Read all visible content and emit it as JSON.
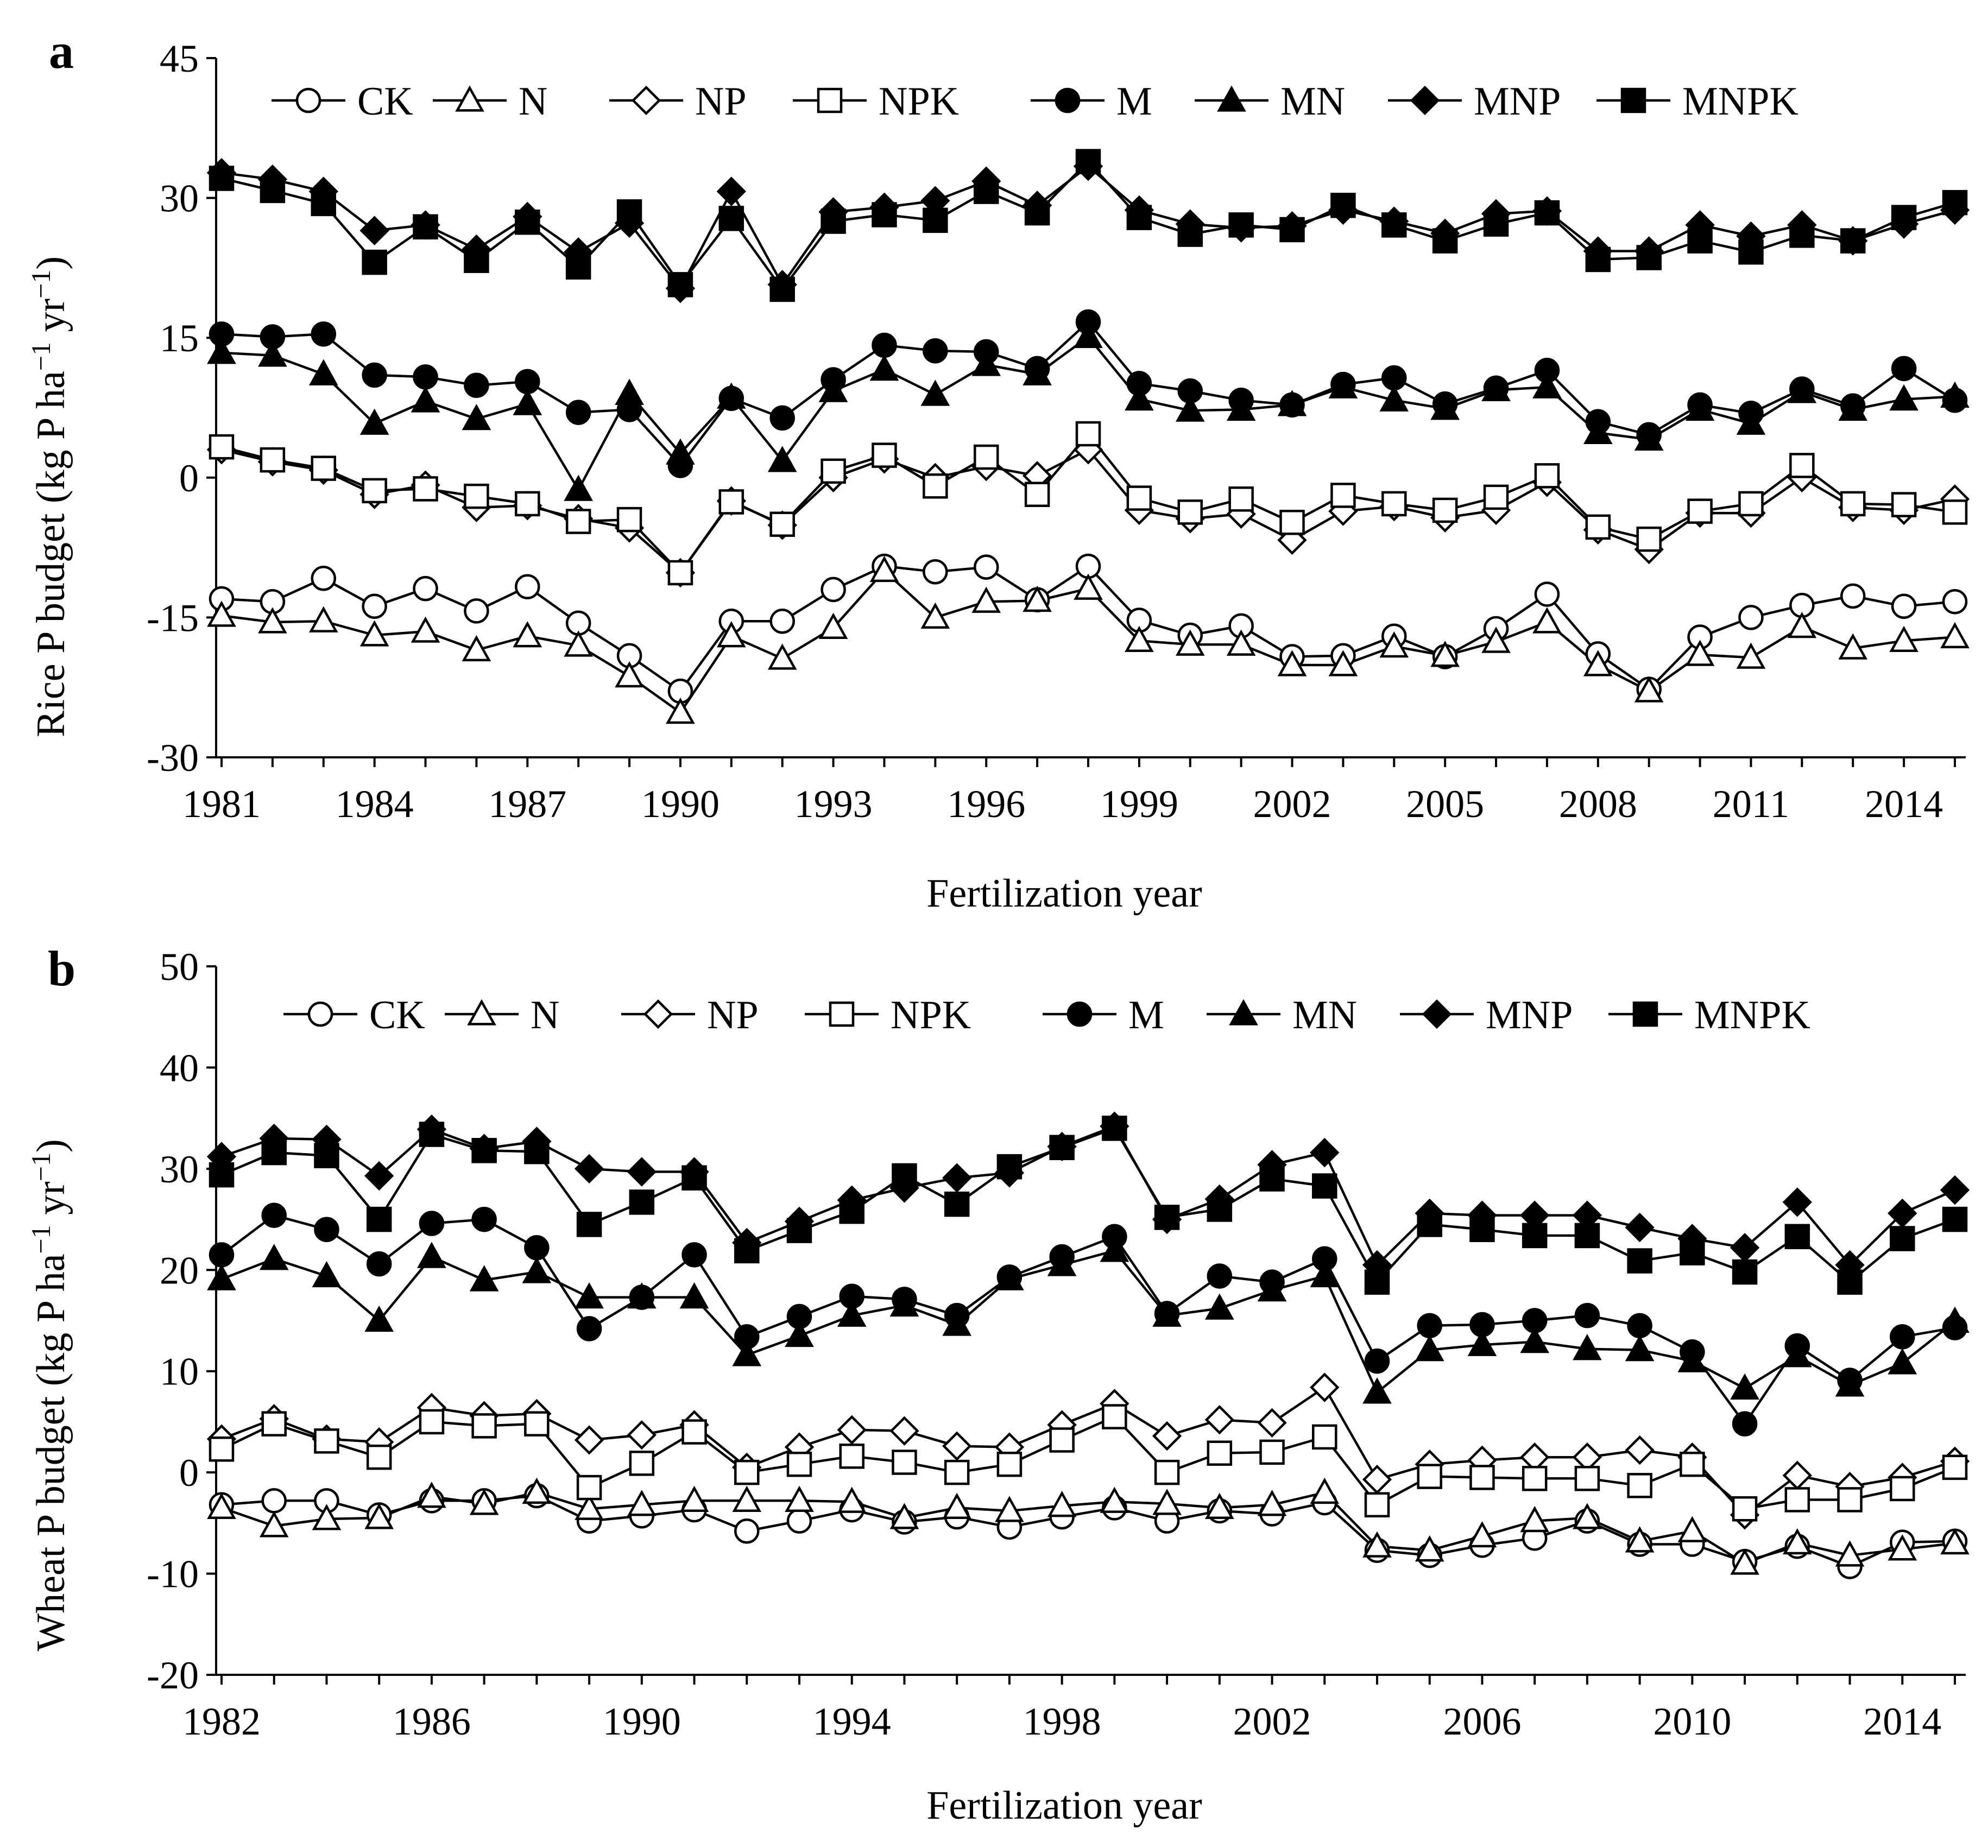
{
  "chart_data": [
    {
      "type": "line",
      "panel_label": "a",
      "xlabel": "Fertilization year",
      "ylabel": "Rice P budget (kg P ha",
      "ylabel_sup1": "−1",
      "ylabel_mid": " yr",
      "ylabel_sup2": "−1",
      "ylabel_end": ")",
      "ylim": [
        -30,
        45
      ],
      "yticks": [
        "-30",
        "-15",
        "0",
        "15",
        "30",
        "45"
      ],
      "xlim": [
        1981,
        2015
      ],
      "xticks": [
        "1981",
        "1984",
        "1987",
        "1990",
        "1993",
        "1996",
        "1999",
        "2002",
        "2005",
        "2008",
        "2011",
        "2014"
      ],
      "x": [
        1981,
        1982,
        1983,
        1984,
        1985,
        1986,
        1987,
        1988,
        1989,
        1990,
        1991,
        1992,
        1993,
        1994,
        1995,
        1996,
        1997,
        1998,
        1999,
        2000,
        2001,
        2002,
        2003,
        2004,
        2005,
        2006,
        2007,
        2008,
        2009,
        2010,
        2011,
        2012,
        2013,
        2014,
        2015
      ],
      "series": [
        {
          "name": "CK",
          "marker": "circle-open",
          "values": [
            -13,
            -13.3,
            -10.8,
            -13.8,
            -11.9,
            -14.3,
            -11.7,
            -15.6,
            -19.1,
            -22.9,
            -15.4,
            -15.4,
            -12,
            -9.5,
            -10.1,
            -9.6,
            -13.1,
            -9.5,
            -15.3,
            -16.9,
            -15.9,
            -19.2,
            -19.1,
            -17,
            -19.2,
            -16.2,
            -12.5,
            -18.9,
            -22.7,
            -17.1,
            -15,
            -13.7,
            -12.7,
            -13.8,
            -13.3
          ]
        },
        {
          "name": "N",
          "marker": "triangle-open",
          "values": [
            -14.8,
            -15.5,
            -15.4,
            -16.9,
            -16.5,
            -18.5,
            -17,
            -18,
            -21.3,
            -25.2,
            -17,
            -19.4,
            -16.1,
            -10,
            -15,
            -13.3,
            -13.2,
            -11.9,
            -17.5,
            -17.9,
            -17.9,
            -20.1,
            -20.1,
            -18.1,
            -19.1,
            -17.6,
            -15.5,
            -20.1,
            -22.9,
            -19,
            -19.3,
            -16,
            -18.3,
            -17.5,
            -17.1
          ]
        },
        {
          "name": "NP",
          "marker": "diamond-open",
          "values": [
            3,
            1.7,
            0.8,
            -1.8,
            -0.8,
            -3.2,
            -3,
            -4.4,
            -5.4,
            -10.2,
            -2.5,
            -5.1,
            0,
            2,
            0,
            1.2,
            0.2,
            3,
            -3.5,
            -4.4,
            -3.9,
            -6.7,
            -3.6,
            -3.1,
            -4.3,
            -3.5,
            -0.5,
            -5.6,
            -7.7,
            -3.8,
            -3.8,
            0,
            -3.2,
            -3.5,
            -2.3
          ]
        },
        {
          "name": "NPK",
          "marker": "square-open",
          "values": [
            3.3,
            1.9,
            1,
            -1.4,
            -1.2,
            -2,
            -2.8,
            -4.7,
            -4.5,
            -10.2,
            -2.6,
            -5,
            0.7,
            2.4,
            -0.9,
            2.2,
            -1.8,
            4.7,
            -2.2,
            -3.7,
            -2.3,
            -4.8,
            -1.9,
            -2.8,
            -3.5,
            -2.1,
            0.2,
            -5.3,
            -6.6,
            -3.6,
            -2.8,
            1.3,
            -2.8,
            -2.9,
            -3.7
          ]
        },
        {
          "name": "M",
          "marker": "circle-filled",
          "values": [
            15.4,
            15.1,
            15.4,
            11,
            10.8,
            9.9,
            10.3,
            7,
            7.3,
            1.3,
            8.5,
            6.4,
            10.5,
            14.2,
            13.6,
            13.5,
            11.7,
            16.7,
            10.1,
            9.3,
            8.3,
            7.8,
            10,
            10.7,
            7.9,
            9.6,
            11.5,
            6,
            4.6,
            7.8,
            6.9,
            9.5,
            7.7,
            11.7,
            8.3
          ]
        },
        {
          "name": "MN",
          "marker": "triangle-filled",
          "values": [
            13.4,
            13.1,
            11.1,
            5.8,
            8.2,
            6.3,
            7.9,
            -1.3,
            9,
            2.6,
            8.6,
            1.8,
            9.3,
            11.6,
            8.9,
            12.1,
            11.1,
            15.1,
            8.4,
            7.2,
            7.3,
            7.8,
            9.7,
            8.3,
            7.4,
            9.4,
            9.7,
            4.8,
            4.1,
            7.3,
            5.8,
            9.2,
            7.3,
            8.4,
            8.7
          ]
        },
        {
          "name": "MNP",
          "marker": "diamond-filled",
          "values": [
            32.7,
            32,
            30.7,
            26.5,
            27.1,
            24.5,
            28,
            24.2,
            27.3,
            20.3,
            30.7,
            20.7,
            28.5,
            29,
            29.7,
            31.8,
            29.2,
            33.4,
            28.7,
            27.2,
            26.8,
            27,
            28.7,
            27.5,
            26.2,
            28.3,
            28.6,
            24.3,
            24.3,
            27.1,
            25.9,
            27.1,
            25.4,
            27.2,
            28.7
          ]
        },
        {
          "name": "MNPK",
          "marker": "square-filled",
          "values": [
            32.1,
            30.8,
            29.4,
            23.1,
            26.9,
            23.3,
            27.4,
            22.6,
            28.5,
            20.7,
            27.8,
            20.2,
            27.5,
            28.2,
            27.6,
            30.7,
            28.4,
            33.9,
            27.9,
            26.1,
            27.1,
            26.6,
            29.2,
            27.1,
            25.4,
            27.2,
            28.4,
            23.4,
            23.6,
            25.4,
            24.2,
            26,
            25.4,
            27.9,
            29.5
          ]
        }
      ]
    },
    {
      "type": "line",
      "panel_label": "b",
      "xlabel": "Fertilization year",
      "ylabel": "Wheat P budget (kg P ha",
      "ylabel_sup1": "−1",
      "ylabel_mid": " yr",
      "ylabel_sup2": "−1",
      "ylabel_end": ")",
      "ylim": [
        -20,
        50
      ],
      "yticks": [
        "-20",
        "-10",
        "0",
        "10",
        "20",
        "30",
        "40",
        "50"
      ],
      "xlim": [
        1982,
        2015
      ],
      "xticks": [
        "1982",
        "1986",
        "1990",
        "1994",
        "1998",
        "2002",
        "2006",
        "2010",
        "2014"
      ],
      "x": [
        1982,
        1983,
        1984,
        1985,
        1986,
        1987,
        1988,
        1989,
        1990,
        1991,
        1992,
        1993,
        1994,
        1995,
        1996,
        1997,
        1998,
        1999,
        2000,
        2001,
        2002,
        2003,
        2004,
        2005,
        2006,
        2007,
        2008,
        2009,
        2010,
        2011,
        2012,
        2013,
        2014,
        2015
      ],
      "series": [
        {
          "name": "CK",
          "marker": "circle-open",
          "values": [
            -3.2,
            -2.8,
            -2.8,
            -4.2,
            -2.8,
            -2.8,
            -2.3,
            -4.8,
            -4.3,
            -3.7,
            -5.8,
            -4.8,
            -3.7,
            -4.9,
            -4.4,
            -5.4,
            -4.4,
            -3.5,
            -4.8,
            -3.8,
            -4.1,
            -3,
            -7.7,
            -8.2,
            -7.2,
            -6.5,
            -4.8,
            -7.1,
            -7.1,
            -8.8,
            -7.3,
            -9.3,
            -6.9,
            -6.8
          ]
        },
        {
          "name": "N",
          "marker": "triangle-open",
          "values": [
            -3.5,
            -5.3,
            -4.6,
            -4.5,
            -2.4,
            -3.1,
            -2,
            -3.6,
            -3.2,
            -2.8,
            -2.8,
            -2.8,
            -2.9,
            -4.5,
            -3.5,
            -3.8,
            -3.3,
            -2.9,
            -3.1,
            -3.5,
            -3.2,
            -2,
            -7.3,
            -7.7,
            -6.3,
            -4.8,
            -4.5,
            -6.8,
            -5.8,
            -9,
            -7,
            -8.2,
            -7.6,
            -7
          ]
        },
        {
          "name": "NP",
          "marker": "diamond-open",
          "values": [
            3.3,
            5.3,
            3.3,
            3,
            6.4,
            5.6,
            5.8,
            3.2,
            3.7,
            4.7,
            0.5,
            2.5,
            4.2,
            4.1,
            2.6,
            2.5,
            4.7,
            6.8,
            3.6,
            5.2,
            4.9,
            8.4,
            -0.7,
            0.8,
            1.2,
            1.5,
            1.5,
            2.2,
            1.5,
            -4.2,
            -0.3,
            -1.4,
            -0.5,
            1.1
          ]
        },
        {
          "name": "NPK",
          "marker": "square-open",
          "values": [
            2.3,
            4.8,
            3.1,
            1.5,
            5,
            4.6,
            4.8,
            -1.5,
            0.9,
            4,
            0,
            0.8,
            1.6,
            1,
            0,
            0.8,
            3.2,
            5.5,
            0,
            1.9,
            2,
            3.5,
            -3.2,
            -0.4,
            -0.5,
            -0.6,
            -0.6,
            -1.3,
            0.8,
            -3.6,
            -2.7,
            -2.7,
            -1.6,
            0.5
          ]
        },
        {
          "name": "M",
          "marker": "circle-filled",
          "values": [
            21.5,
            25.4,
            24,
            20.6,
            24.6,
            25,
            22.2,
            14.2,
            17.3,
            21.5,
            13.4,
            15.4,
            17.4,
            17.1,
            15.5,
            19.3,
            21.3,
            23.3,
            15.7,
            19.4,
            18.8,
            21.1,
            11,
            14.5,
            14.6,
            15,
            15.5,
            14.5,
            11.9,
            4.8,
            12.5,
            9.1,
            13.4,
            14.3
          ]
        },
        {
          "name": "MN",
          "marker": "triangle-filled",
          "values": [
            19.1,
            21.1,
            19.4,
            15,
            21.3,
            19,
            19.8,
            17.3,
            17.3,
            17.3,
            11.6,
            13.5,
            15.5,
            16.5,
            14.6,
            19.1,
            20.5,
            21.9,
            15.5,
            16.2,
            18,
            19.4,
            7.9,
            12.1,
            12.6,
            12.9,
            12.2,
            12.1,
            11,
            8.3,
            11.5,
            8.6,
            10.8,
            14.9
          ]
        },
        {
          "name": "MNP",
          "marker": "diamond-filled",
          "values": [
            31.2,
            33,
            32.9,
            29.3,
            33.9,
            32,
            32.7,
            30,
            29.7,
            29.7,
            22.7,
            24.8,
            26.9,
            28.1,
            29.1,
            29.6,
            32.2,
            34.2,
            25,
            27,
            30.4,
            31.6,
            20.5,
            25.6,
            25.4,
            25.4,
            25.4,
            24.2,
            23.1,
            22.2,
            26.7,
            20.5,
            25.6,
            27.9
          ]
        },
        {
          "name": "MNPK",
          "marker": "square-filled",
          "values": [
            29.4,
            31.6,
            31.3,
            25,
            33.4,
            31.8,
            31.7,
            24.5,
            26.7,
            29.1,
            21.9,
            23.9,
            25.8,
            29.3,
            26.5,
            30.2,
            32.1,
            34,
            25.2,
            26,
            29,
            28.3,
            18.8,
            24.5,
            24,
            23.4,
            23.4,
            20.9,
            21.7,
            19.8,
            23.3,
            18.8,
            23.1,
            25
          ]
        }
      ]
    }
  ]
}
